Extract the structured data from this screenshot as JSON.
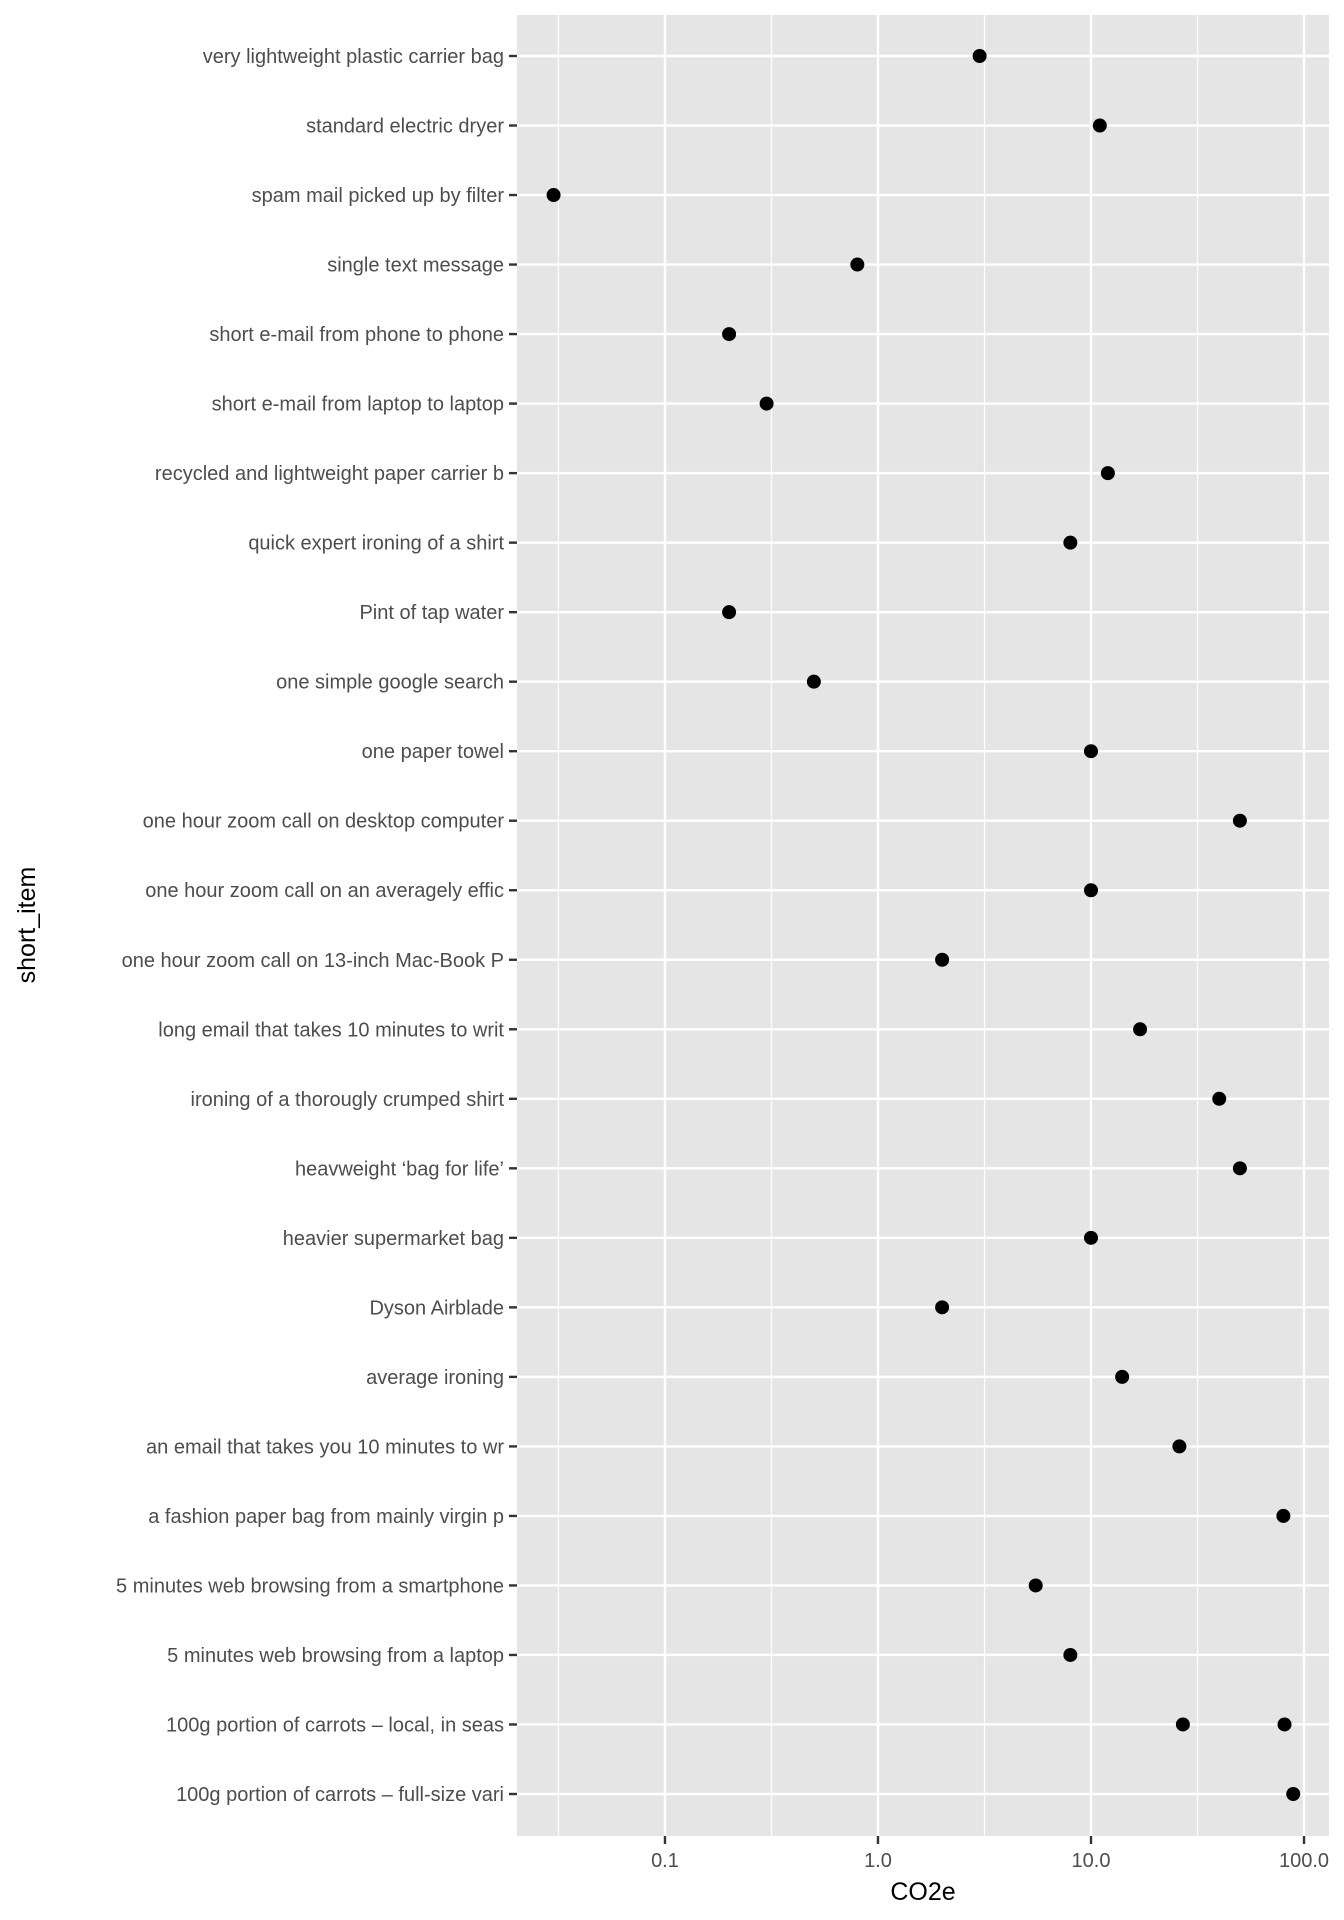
{
  "chart_data": {
    "type": "scatter",
    "title": "",
    "xlabel": "CO2e",
    "ylabel": "short_item",
    "x_scale": "log10",
    "xlim": [
      0.0202,
      131
    ],
    "x_ticks": [
      0.1,
      1.0,
      10.0,
      100.0
    ],
    "x_tick_labels": [
      "0.1",
      "1.0",
      "10.0",
      "100.0"
    ],
    "grid": true,
    "legend": "none",
    "colors": {
      "panel_background": "#e5e5e5",
      "grid": "#ffffff",
      "point": "#000000",
      "tick_label": "#4d4d4d",
      "tick": "#333333"
    },
    "categories": [
      "very lightweight plastic carrier bag",
      "standard electric dryer",
      "spam mail picked up by filter",
      "single text message",
      "short e-mail from phone to phone",
      "short e-mail from laptop to laptop",
      "recycled and lightweight paper carrier b",
      "quick expert ironing of a shirt",
      "Pint of tap water",
      "one simple google search",
      "one paper towel",
      "one hour zoom call on desktop computer",
      "one hour zoom call on an averagely effic",
      "one hour zoom call on 13-inch Mac-Book P",
      "long email that takes 10 minutes to writ",
      "ironing of a thorougly crumped shirt",
      "heavweight ‘bag for life’",
      "heavier supermarket bag",
      "Dyson Airblade",
      "average ironing",
      "an email that takes you 10 minutes to wr",
      "a fashion paper bag from mainly virgin p",
      "5 minutes web browsing from a smartphone",
      "5 minutes web browsing from a laptop",
      "100g portion of carrots – local, in seas",
      "100g portion of carrots – full-size vari"
    ],
    "points": [
      {
        "category": "very lightweight plastic carrier bag",
        "x": 3
      },
      {
        "category": "standard electric dryer",
        "x": 11
      },
      {
        "category": "spam mail picked up by filter",
        "x": 0.03
      },
      {
        "category": "single text message",
        "x": 0.8
      },
      {
        "category": "short e-mail from phone to phone",
        "x": 0.2
      },
      {
        "category": "short e-mail from laptop to laptop",
        "x": 0.3
      },
      {
        "category": "recycled and lightweight paper carrier b",
        "x": 12
      },
      {
        "category": "quick expert ironing of a shirt",
        "x": 8
      },
      {
        "category": "Pint of tap water",
        "x": 0.2
      },
      {
        "category": "one simple google search",
        "x": 0.5
      },
      {
        "category": "one paper towel",
        "x": 10
      },
      {
        "category": "one hour zoom call on desktop computer",
        "x": 50
      },
      {
        "category": "one hour zoom call on an averagely effic",
        "x": 10
      },
      {
        "category": "one hour zoom call on 13-inch Mac-Book P",
        "x": 2
      },
      {
        "category": "long email that takes 10 minutes to writ",
        "x": 17
      },
      {
        "category": "ironing of a thorougly crumped shirt",
        "x": 40
      },
      {
        "category": "heavweight ‘bag for life’",
        "x": 50
      },
      {
        "category": "heavier supermarket bag",
        "x": 10
      },
      {
        "category": "Dyson Airblade",
        "x": 2
      },
      {
        "category": "average ironing",
        "x": 14
      },
      {
        "category": "an email that takes you 10 minutes to wr",
        "x": 26
      },
      {
        "category": "a fashion paper bag from mainly virgin p",
        "x": 80
      },
      {
        "category": "5 minutes web browsing from a smartphone",
        "x": 5.5
      },
      {
        "category": "5 minutes web browsing from a laptop",
        "x": 8
      },
      {
        "category": "100g portion of carrots – local, in seas",
        "x": 27
      },
      {
        "category": "100g portion of carrots – local, in seas",
        "x": 81
      },
      {
        "category": "100g portion of carrots – full-size vari",
        "x": 89
      }
    ]
  }
}
